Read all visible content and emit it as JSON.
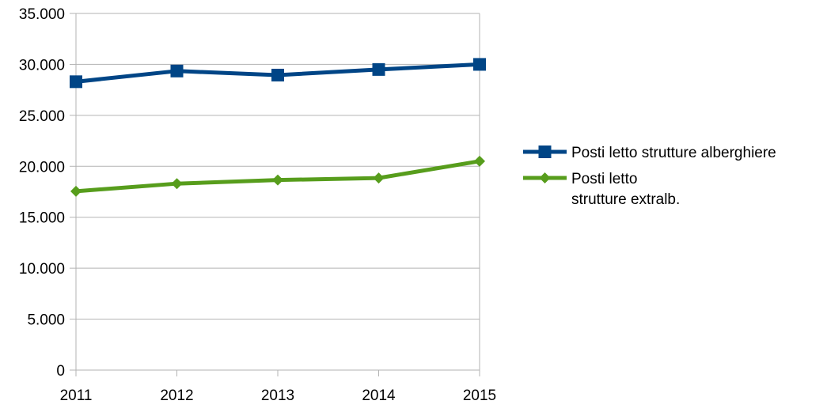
{
  "chart_data": {
    "type": "line",
    "categories": [
      "2011",
      "2012",
      "2013",
      "2014",
      "2015"
    ],
    "series": [
      {
        "name": "Posti letto strutture alberghiere",
        "values": [
          28300,
          29350,
          28950,
          29500,
          30000
        ],
        "color": "#004586",
        "marker": "square"
      },
      {
        "name": "Posti letto strutture extralb.",
        "name_lines": [
          "Posti letto",
          "strutture extralb."
        ],
        "values": [
          17550,
          18300,
          18650,
          18850,
          20500
        ],
        "color": "#579d1c",
        "marker": "diamond"
      }
    ],
    "ylim": [
      0,
      35000
    ],
    "yticks": [
      0,
      5000,
      10000,
      15000,
      20000,
      25000,
      30000,
      35000
    ],
    "ytick_labels": [
      "0",
      "5.000",
      "10.000",
      "15.000",
      "20.000",
      "25.000",
      "30.000",
      "35.000"
    ],
    "grid": true,
    "legend_position": "right"
  }
}
